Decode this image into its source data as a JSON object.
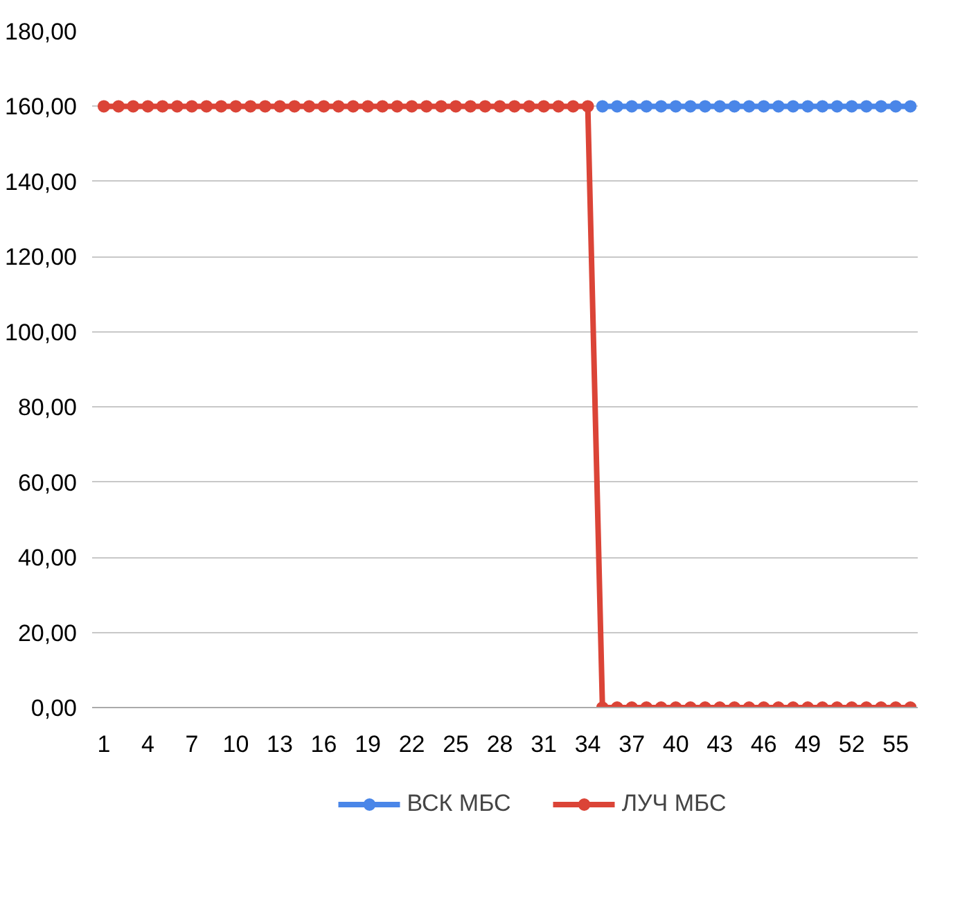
{
  "chart_data": {
    "type": "line",
    "categories": [
      "1",
      null,
      null,
      "4",
      null,
      null,
      "7",
      null,
      null,
      "10",
      null,
      null,
      "13",
      null,
      null,
      "16",
      null,
      null,
      "19",
      null,
      null,
      "22",
      null,
      null,
      "25",
      null,
      null,
      "28",
      null,
      null,
      "31",
      null,
      null,
      "34",
      null,
      null,
      "37",
      null,
      null,
      "40",
      null,
      null,
      "43",
      null,
      null,
      "46",
      null,
      null,
      "49",
      null,
      null,
      "52",
      null,
      null,
      "55",
      null
    ],
    "series": [
      {
        "name": "ВСК МБС",
        "color": "#4a86e8",
        "values": [
          null,
          null,
          null,
          null,
          null,
          null,
          null,
          null,
          null,
          null,
          null,
          null,
          null,
          null,
          null,
          null,
          null,
          null,
          null,
          null,
          null,
          null,
          null,
          null,
          null,
          null,
          null,
          null,
          null,
          null,
          null,
          null,
          null,
          null,
          160,
          160,
          160,
          160,
          160,
          160,
          160,
          160,
          160,
          160,
          160,
          160,
          160,
          160,
          160,
          160,
          160,
          160,
          160,
          160,
          160,
          160
        ]
      },
      {
        "name": "ЛУЧ МБС",
        "color": "#db4437",
        "values": [
          160,
          160,
          160,
          160,
          160,
          160,
          160,
          160,
          160,
          160,
          160,
          160,
          160,
          160,
          160,
          160,
          160,
          160,
          160,
          160,
          160,
          160,
          160,
          160,
          160,
          160,
          160,
          160,
          160,
          160,
          160,
          160,
          160,
          160,
          0,
          0,
          0,
          0,
          0,
          0,
          0,
          0,
          0,
          0,
          0,
          0,
          0,
          0,
          0,
          0,
          0,
          0,
          0,
          0,
          0,
          0
        ]
      }
    ],
    "ylim": [
      0,
      180
    ],
    "yticks": [
      {
        "value": 0,
        "label": "0,00"
      },
      {
        "value": 20,
        "label": "20,00"
      },
      {
        "value": 40,
        "label": "40,00"
      },
      {
        "value": 60,
        "label": "60,00"
      },
      {
        "value": 80,
        "label": "80,00"
      },
      {
        "value": 100,
        "label": "100,00"
      },
      {
        "value": 120,
        "label": "120,00"
      },
      {
        "value": 140,
        "label": "140,00"
      },
      {
        "value": 160,
        "label": "160,00"
      },
      {
        "value": 180,
        "label": "180,00"
      }
    ],
    "grid": "y",
    "legend": "bottom",
    "marker": "circle",
    "line_style": "solid"
  }
}
